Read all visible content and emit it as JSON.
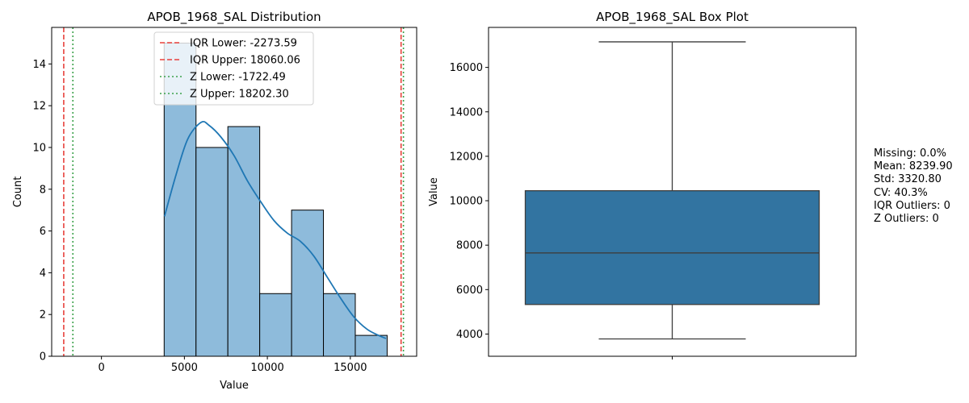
{
  "chart_data": [
    {
      "type": "bar",
      "title": "APOB_1968_SAL Distribution",
      "xlabel": "Value",
      "ylabel": "Count",
      "xlim": [
        -3000,
        19000
      ],
      "ylim": [
        0,
        15.75
      ],
      "xticks": [
        0,
        5000,
        10000,
        15000
      ],
      "yticks": [
        0,
        2,
        4,
        6,
        8,
        10,
        12,
        14
      ],
      "bins": [
        {
          "x0": 3780,
          "x1": 5700,
          "count": 15
        },
        {
          "x0": 5700,
          "x1": 7620,
          "count": 10
        },
        {
          "x0": 7620,
          "x1": 9540,
          "count": 11
        },
        {
          "x0": 9540,
          "x1": 11460,
          "count": 3
        },
        {
          "x0": 11460,
          "x1": 13380,
          "count": 7
        },
        {
          "x0": 13380,
          "x1": 15300,
          "count": 3
        },
        {
          "x0": 15300,
          "x1": 17220,
          "count": 1
        }
      ],
      "kde": {
        "x": [
          3800,
          4500,
          5200,
          6000,
          6500,
          7200,
          8000,
          8800,
          9600,
          10400,
          11200,
          12000,
          12800,
          13600,
          14400,
          15200,
          16000,
          16700,
          17150
        ],
        "y": [
          6.7,
          8.7,
          10.4,
          11.2,
          11.05,
          10.5,
          9.6,
          8.4,
          7.4,
          6.5,
          5.9,
          5.5,
          4.8,
          3.8,
          2.8,
          1.9,
          1.3,
          1.0,
          0.85
        ]
      },
      "reference_lines": [
        {
          "label": "IQR Lower: -2273.59",
          "value": -2273.59,
          "color": "#e8413c",
          "style": "dashed"
        },
        {
          "label": "IQR Upper: 18060.06",
          "value": 18060.06,
          "color": "#e8413c",
          "style": "dashed"
        },
        {
          "label": "Z Lower: -1722.49",
          "value": -1722.49,
          "color": "#3aa14a",
          "style": "dotted"
        },
        {
          "label": "Z Upper: 18202.30",
          "value": 18202.3,
          "color": "#3aa14a",
          "style": "dotted"
        }
      ],
      "colors": {
        "bar_fill": "#8ebbdb",
        "bar_edge": "#000000",
        "kde_line": "#1f77b4"
      },
      "legend_position": "top-center"
    },
    {
      "type": "box",
      "title": "APOB_1968_SAL Box Plot",
      "ylabel": "Value",
      "ylim": [
        3000,
        17800
      ],
      "yticks": [
        4000,
        6000,
        8000,
        10000,
        12000,
        14000,
        16000
      ],
      "box": {
        "whisker_low": 3780,
        "q1": 5330,
        "median": 7650,
        "q3": 10450,
        "whisker_high": 17150
      },
      "colors": {
        "box_fill": "#3274a1",
        "lines": "#3d3d3d"
      }
    }
  ],
  "stats_text": [
    "Missing: 0.0%",
    "Mean: 8239.90",
    "Std: 3320.80",
    "CV: 40.3%",
    "IQR Outliers: 0",
    "Z Outliers: 0"
  ]
}
